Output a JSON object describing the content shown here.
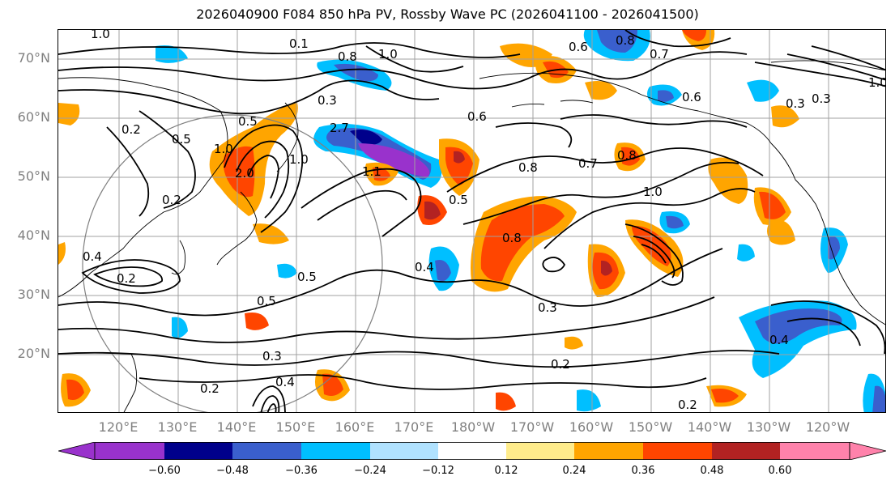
{
  "title": "2026040900 F084 850 hPa PV, Rossby Wave PC (2026041100 - 2026041500)",
  "lat_labels": [
    "70°N",
    "60°N",
    "50°N",
    "40°N",
    "30°N",
    "20°N"
  ],
  "lon_labels": [
    "120°E",
    "130°E",
    "140°E",
    "150°E",
    "160°E",
    "170°E",
    "180°W",
    "170°W",
    "160°W",
    "150°W",
    "140°W",
    "130°W",
    "120°W"
  ],
  "colorbar": {
    "colors": [
      "#9932cc",
      "#00008b",
      "#3a5fcd",
      "#00bfff",
      "#b0e2ff",
      "#ffffff",
      "#ffec8b",
      "#ffa500",
      "#ff4500",
      "#b22222",
      "#ff82ab"
    ],
    "tick_labels": [
      "−0.60",
      "−0.48",
      "−0.36",
      "−0.24",
      "−0.12",
      "0.12",
      "0.24",
      "0.36",
      "0.48",
      "0.60"
    ]
  },
  "contour_labels": [
    "1.0",
    "0.1",
    "0.8",
    "1.0",
    "0.6",
    "0.8",
    "0.7",
    "0.3",
    "0.2",
    "0.5",
    "1.0",
    "2.0",
    "1.0",
    "0.5",
    "2.7",
    "1.1",
    "0.5",
    "0.6",
    "0.8",
    "0.7",
    "0.8",
    "1.0",
    "0.6",
    "0.2",
    "0.8",
    "0.4",
    "0.2",
    "0.5",
    "0.5",
    "0.4",
    "0.3",
    "0.2",
    "0.2",
    "0.3",
    "0.2",
    "0.4",
    "0.4",
    "0.3",
    "1.0",
    "0.3"
  ]
}
